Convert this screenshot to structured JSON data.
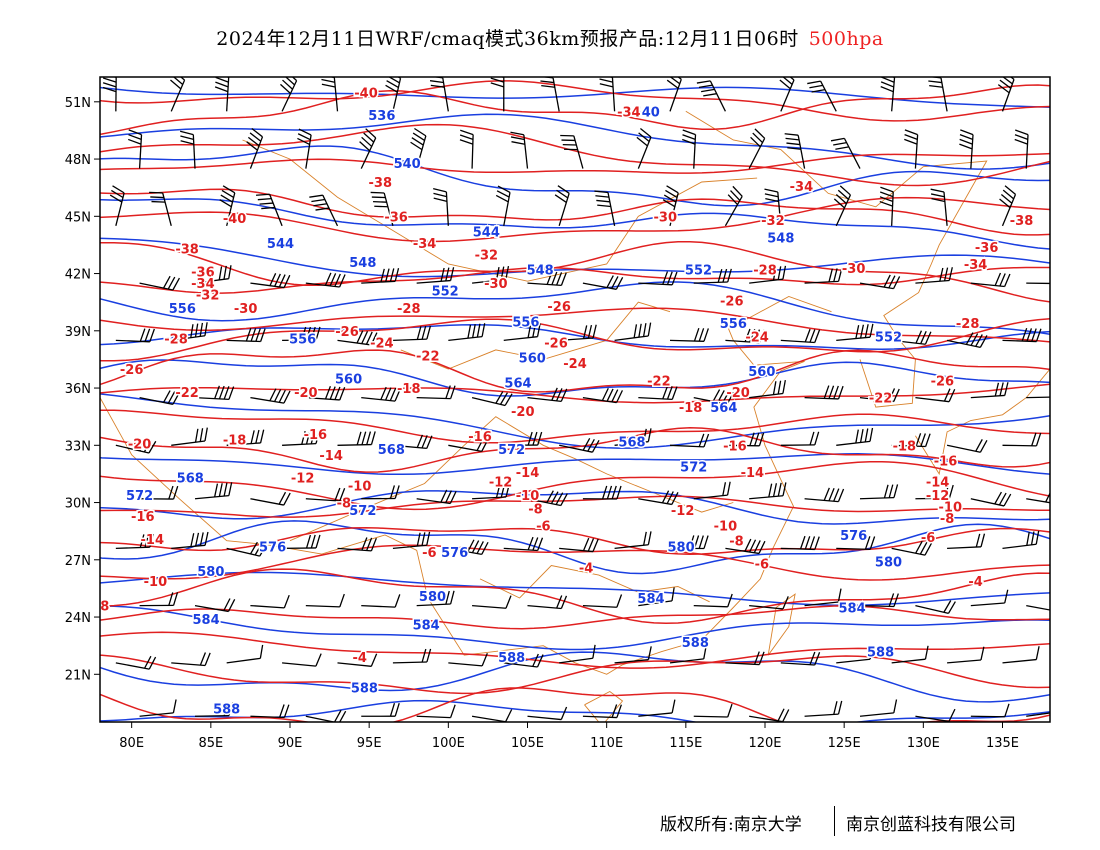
{
  "title": {
    "text": "2024年12月11日WRF/cmaq模式36km预报产品:12月11日06时",
    "level": "500hpa",
    "level_color": "#ee2222"
  },
  "colors": {
    "temperature_contour": "#e02020",
    "height_contour": "#1a3fe0",
    "border": "#d9822b",
    "wind_barb": "#000000"
  },
  "axes": {
    "lat_ticks": [
      "51N",
      "48N",
      "45N",
      "42N",
      "39N",
      "36N",
      "33N",
      "30N",
      "27N",
      "24N",
      "21N"
    ],
    "lon_ticks": [
      "80E",
      "85E",
      "90E",
      "95E",
      "100E",
      "105E",
      "110E",
      "115E",
      "120E",
      "125E",
      "130E",
      "135E"
    ],
    "lon_range": [
      78,
      138
    ],
    "lat_range": [
      18.5,
      52.3
    ]
  },
  "temperature_labels": [
    {
      "text": "-40",
      "lon": 94.8,
      "lat": 51.5
    },
    {
      "text": "-34",
      "lon": 111.4,
      "lat": 50.5
    },
    {
      "text": "-40",
      "lon": 86.5,
      "lat": 44.9
    },
    {
      "text": "-38",
      "lon": 83.5,
      "lat": 43.3
    },
    {
      "text": "-38",
      "lon": 95.7,
      "lat": 46.8
    },
    {
      "text": "-36",
      "lon": 96.7,
      "lat": 45.0
    },
    {
      "text": "-34",
      "lon": 98.5,
      "lat": 43.6
    },
    {
      "text": "-32",
      "lon": 102.4,
      "lat": 43.0
    },
    {
      "text": "-30",
      "lon": 113.7,
      "lat": 45.0
    },
    {
      "text": "-34",
      "lon": 122.3,
      "lat": 46.6
    },
    {
      "text": "-32",
      "lon": 120.5,
      "lat": 44.8
    },
    {
      "text": "-38",
      "lon": 136.2,
      "lat": 44.8
    },
    {
      "text": "-36",
      "lon": 134.0,
      "lat": 43.4
    },
    {
      "text": "-34",
      "lon": 133.3,
      "lat": 42.5
    },
    {
      "text": "-30",
      "lon": 103.0,
      "lat": 41.5
    },
    {
      "text": "-28",
      "lon": 120.0,
      "lat": 42.2
    },
    {
      "text": "-30",
      "lon": 125.6,
      "lat": 42.3
    },
    {
      "text": "-36",
      "lon": 84.5,
      "lat": 42.1
    },
    {
      "text": "-34",
      "lon": 84.5,
      "lat": 41.5
    },
    {
      "text": "-32",
      "lon": 84.8,
      "lat": 40.9
    },
    {
      "text": "-30",
      "lon": 87.2,
      "lat": 40.2
    },
    {
      "text": "-28",
      "lon": 97.5,
      "lat": 40.2
    },
    {
      "text": "-26",
      "lon": 117.9,
      "lat": 40.6
    },
    {
      "text": "-26",
      "lon": 107.0,
      "lat": 40.3
    },
    {
      "text": "-28",
      "lon": 132.8,
      "lat": 39.4
    },
    {
      "text": "-28",
      "lon": 82.8,
      "lat": 38.6
    },
    {
      "text": "-26",
      "lon": 93.6,
      "lat": 39.0
    },
    {
      "text": "-24",
      "lon": 95.8,
      "lat": 38.4
    },
    {
      "text": "-26",
      "lon": 106.8,
      "lat": 38.4
    },
    {
      "text": "-24",
      "lon": 119.5,
      "lat": 38.7
    },
    {
      "text": "-22",
      "lon": 98.7,
      "lat": 37.7
    },
    {
      "text": "-24",
      "lon": 108.0,
      "lat": 37.3
    },
    {
      "text": "-26",
      "lon": 80.0,
      "lat": 37.0
    },
    {
      "text": "-22",
      "lon": 83.5,
      "lat": 35.8
    },
    {
      "text": "-20",
      "lon": 91.0,
      "lat": 35.8
    },
    {
      "text": "-18",
      "lon": 97.5,
      "lat": 36.0
    },
    {
      "text": "-22",
      "lon": 113.3,
      "lat": 36.4
    },
    {
      "text": "-20",
      "lon": 118.3,
      "lat": 35.8
    },
    {
      "text": "-26",
      "lon": 131.2,
      "lat": 36.4
    },
    {
      "text": "-22",
      "lon": 127.3,
      "lat": 35.5
    },
    {
      "text": "-20",
      "lon": 104.7,
      "lat": 34.8
    },
    {
      "text": "-18",
      "lon": 115.3,
      "lat": 35.0
    },
    {
      "text": "-18",
      "lon": 86.5,
      "lat": 33.3
    },
    {
      "text": "-20",
      "lon": 80.5,
      "lat": 33.1
    },
    {
      "text": "-16",
      "lon": 91.6,
      "lat": 33.6
    },
    {
      "text": "-14",
      "lon": 92.6,
      "lat": 32.5
    },
    {
      "text": "-16",
      "lon": 102.0,
      "lat": 33.5
    },
    {
      "text": "-16",
      "lon": 118.1,
      "lat": 33.0
    },
    {
      "text": "-18",
      "lon": 128.8,
      "lat": 33.0
    },
    {
      "text": "-16",
      "lon": 131.4,
      "lat": 32.2
    },
    {
      "text": "-12",
      "lon": 90.8,
      "lat": 31.3
    },
    {
      "text": "-10",
      "lon": 94.4,
      "lat": 30.9
    },
    {
      "text": "-14",
      "lon": 105.0,
      "lat": 31.6
    },
    {
      "text": "-12",
      "lon": 103.3,
      "lat": 31.1
    },
    {
      "text": "-14",
      "lon": 119.2,
      "lat": 31.6
    },
    {
      "text": "-14",
      "lon": 130.9,
      "lat": 31.1
    },
    {
      "text": "-12",
      "lon": 130.9,
      "lat": 30.4
    },
    {
      "text": "-10",
      "lon": 105.0,
      "lat": 30.4
    },
    {
      "text": "-10",
      "lon": 131.7,
      "lat": 29.8
    },
    {
      "text": "-8",
      "lon": 93.4,
      "lat": 30.0
    },
    {
      "text": "-8",
      "lon": 105.5,
      "lat": 29.7
    },
    {
      "text": "-12",
      "lon": 114.8,
      "lat": 29.6
    },
    {
      "text": "-8",
      "lon": 131.5,
      "lat": 29.2
    },
    {
      "text": "-16",
      "lon": 80.7,
      "lat": 29.3
    },
    {
      "text": "-6",
      "lon": 106.0,
      "lat": 28.8
    },
    {
      "text": "-10",
      "lon": 117.5,
      "lat": 28.8
    },
    {
      "text": "-14",
      "lon": 81.3,
      "lat": 28.1
    },
    {
      "text": "-6",
      "lon": 98.8,
      "lat": 27.4
    },
    {
      "text": "-8",
      "lon": 118.2,
      "lat": 28.0
    },
    {
      "text": "-6",
      "lon": 130.3,
      "lat": 28.2
    },
    {
      "text": "-6",
      "lon": 119.8,
      "lat": 26.8
    },
    {
      "text": "-4",
      "lon": 108.7,
      "lat": 26.6
    },
    {
      "text": "-10",
      "lon": 81.5,
      "lat": 25.9
    },
    {
      "text": "-4",
      "lon": 133.3,
      "lat": 25.9
    },
    {
      "text": "8",
      "lon": 78.3,
      "lat": 24.6
    },
    {
      "text": "-4",
      "lon": 94.4,
      "lat": 21.9
    }
  ],
  "height_labels": [
    {
      "text": "536",
      "lon": 95.8,
      "lat": 50.3
    },
    {
      "text": "540",
      "lon": 112.5,
      "lat": 50.5
    },
    {
      "text": "540",
      "lon": 97.4,
      "lat": 47.8
    },
    {
      "text": "544",
      "lon": 102.4,
      "lat": 44.2
    },
    {
      "text": "544",
      "lon": 89.4,
      "lat": 43.6
    },
    {
      "text": "548",
      "lon": 121.0,
      "lat": 43.9
    },
    {
      "text": "548",
      "lon": 94.6,
      "lat": 42.6
    },
    {
      "text": "548",
      "lon": 105.8,
      "lat": 42.2
    },
    {
      "text": "552",
      "lon": 115.8,
      "lat": 42.2
    },
    {
      "text": "552",
      "lon": 99.8,
      "lat": 41.1
    },
    {
      "text": "556",
      "lon": 83.2,
      "lat": 40.2
    },
    {
      "text": "556",
      "lon": 104.9,
      "lat": 39.5
    },
    {
      "text": "556",
      "lon": 118.0,
      "lat": 39.4
    },
    {
      "text": "552",
      "lon": 127.8,
      "lat": 38.7
    },
    {
      "text": "556",
      "lon": 90.8,
      "lat": 38.6
    },
    {
      "text": "560",
      "lon": 105.3,
      "lat": 37.6
    },
    {
      "text": "560",
      "lon": 93.7,
      "lat": 36.5
    },
    {
      "text": "564",
      "lon": 104.4,
      "lat": 36.3
    },
    {
      "text": "560",
      "lon": 119.8,
      "lat": 36.9
    },
    {
      "text": "564",
      "lon": 117.4,
      "lat": 35.0
    },
    {
      "text": "568",
      "lon": 111.6,
      "lat": 33.2
    },
    {
      "text": "568",
      "lon": 96.4,
      "lat": 32.8
    },
    {
      "text": "572",
      "lon": 104.0,
      "lat": 32.8
    },
    {
      "text": "572",
      "lon": 115.5,
      "lat": 31.9
    },
    {
      "text": "568",
      "lon": 83.7,
      "lat": 31.3
    },
    {
      "text": "572",
      "lon": 80.5,
      "lat": 30.4
    },
    {
      "text": "572",
      "lon": 94.6,
      "lat": 29.6
    },
    {
      "text": "576",
      "lon": 125.6,
      "lat": 28.3
    },
    {
      "text": "576",
      "lon": 88.9,
      "lat": 27.7
    },
    {
      "text": "576",
      "lon": 100.4,
      "lat": 27.4
    },
    {
      "text": "580",
      "lon": 114.7,
      "lat": 27.7
    },
    {
      "text": "580",
      "lon": 127.8,
      "lat": 26.9
    },
    {
      "text": "580",
      "lon": 85.0,
      "lat": 26.4
    },
    {
      "text": "580",
      "lon": 99.0,
      "lat": 25.1
    },
    {
      "text": "584",
      "lon": 112.8,
      "lat": 25.0
    },
    {
      "text": "584",
      "lon": 125.5,
      "lat": 24.5
    },
    {
      "text": "584",
      "lon": 84.7,
      "lat": 23.9
    },
    {
      "text": "584",
      "lon": 98.6,
      "lat": 23.6
    },
    {
      "text": "588",
      "lon": 115.6,
      "lat": 22.7
    },
    {
      "text": "588",
      "lon": 127.3,
      "lat": 22.2
    },
    {
      "text": "588",
      "lon": 104.0,
      "lat": 21.9
    },
    {
      "text": "588",
      "lon": 94.7,
      "lat": 20.3
    },
    {
      "text": "588",
      "lon": 86.0,
      "lat": 19.2
    }
  ],
  "footer": {
    "left": "版权所有:南京大学",
    "right": "南京创蓝科技有限公司"
  }
}
